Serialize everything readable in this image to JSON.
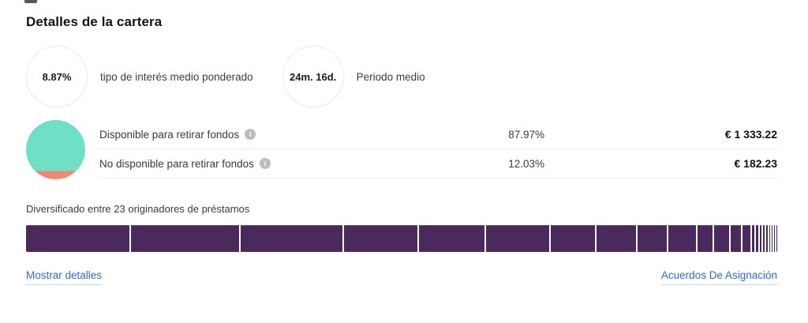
{
  "page": {
    "title": "Detalles de la cartera"
  },
  "colors": {
    "link": "#3069d6",
    "bar": "#4a2a5c",
    "pie_available": "#6fdfc6",
    "pie_unavailable": "#f0876f"
  },
  "stats": [
    {
      "value": "8.87%",
      "label": "tipo de interés medio ponderado"
    },
    {
      "value": "24m. 16d.",
      "label": "Periodo medio"
    }
  ],
  "breakdown": {
    "pie": {
      "available_pct": 87.97,
      "unavailable_pct": 12.03,
      "chord_pct": 86
    },
    "rows": [
      {
        "label": "Disponible para retirar fondos",
        "percent": "87.97%",
        "amount": "€ 1 333.22"
      },
      {
        "label": "No disponible para retirar fondos",
        "percent": "12.03%",
        "amount": "€ 182.23"
      }
    ]
  },
  "diversification": {
    "label": "Diversificado entre 23 originadores de préstamos",
    "originator_count": 23,
    "segments_pct": [
      14.38,
      15.11,
      14.27,
      10.18,
      9.23,
      8.81,
      6.09,
      5.56,
      4.09,
      3.78,
      2.1,
      2.1,
      1.47,
      1.05,
      0.42,
      0.31,
      0.21,
      0.21,
      0.16,
      0.16,
      0.1,
      0.1,
      0.1
    ]
  },
  "links": {
    "show_details": "Mostrar detalles",
    "assignment_agreements": "Acuerdos De Asignación"
  },
  "chart_data": [
    {
      "type": "pie",
      "labels": [
        "Disponible para retirar fondos",
        "No disponible para retirar fondos"
      ],
      "values": [
        87.97,
        12.03
      ],
      "amounts_eur": [
        1333.22,
        182.23
      ],
      "colors": [
        "#6fdfc6",
        "#f0876f"
      ],
      "unit": "%"
    },
    {
      "type": "bar",
      "variant": "horizontal-stacked",
      "title": "Diversificado entre 23 originadores de préstamos",
      "values": [
        14.38,
        15.11,
        14.27,
        10.18,
        9.23,
        8.81,
        6.09,
        5.56,
        4.09,
        3.78,
        2.1,
        2.1,
        1.47,
        1.05,
        0.42,
        0.31,
        0.21,
        0.21,
        0.16,
        0.16,
        0.1,
        0.1,
        0.1
      ],
      "color": "#4a2a5c",
      "unit": "%"
    }
  ]
}
